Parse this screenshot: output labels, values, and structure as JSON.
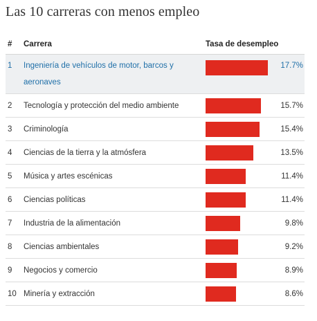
{
  "title": "Las 10 carreras con menos empleo",
  "columns": {
    "num": "#",
    "name": "Carrera",
    "rate": "Tasa de desempleo"
  },
  "colors": {
    "bar": "#e02a1f",
    "highlight_bg": "#eef0f2",
    "highlight_text": "#1f6fa8"
  },
  "chart_data": {
    "type": "bar",
    "title": "Las 10 carreras con menos empleo",
    "categories": [
      "Ingeniería de vehículos de motor, barcos y aeronaves",
      "Tecnología y protección del medio ambiente",
      "Criminología",
      "Ciencias de la tierra y la atmósfera",
      "Música y artes escénicas",
      "Ciencias políticas",
      "Industria de la alimentación",
      "Ciencias ambientales",
      "Negocios y comercio",
      "Minería y extracción"
    ],
    "values": [
      17.7,
      15.7,
      15.4,
      13.5,
      11.4,
      11.4,
      9.8,
      9.2,
      8.9,
      8.6
    ],
    "ylabel": "Tasa de desempleo",
    "unit": "%"
  },
  "rows": [
    {
      "rank": "1",
      "name": "Ingeniería de vehículos de motor, barcos y aeronaves",
      "value_label": "17.7%"
    },
    {
      "rank": "2",
      "name": "Tecnología y protección del medio ambiente",
      "value_label": "15.7%"
    },
    {
      "rank": "3",
      "name": "Criminología",
      "value_label": "15.4%"
    },
    {
      "rank": "4",
      "name": "Ciencias de la tierra y la atmósfera",
      "value_label": "13.5%"
    },
    {
      "rank": "5",
      "name": "Música y artes escénicas",
      "value_label": "11.4%"
    },
    {
      "rank": "6",
      "name": "Ciencias políticas",
      "value_label": "11.4%"
    },
    {
      "rank": "7",
      "name": "Industria de la alimentación",
      "value_label": "9.8%"
    },
    {
      "rank": "8",
      "name": "Ciencias ambientales",
      "value_label": "9.2%"
    },
    {
      "rank": "9",
      "name": "Negocios y comercio",
      "value_label": "8.9%"
    },
    {
      "rank": "10",
      "name": "Minería y extracción",
      "value_label": "8.6%"
    }
  ]
}
